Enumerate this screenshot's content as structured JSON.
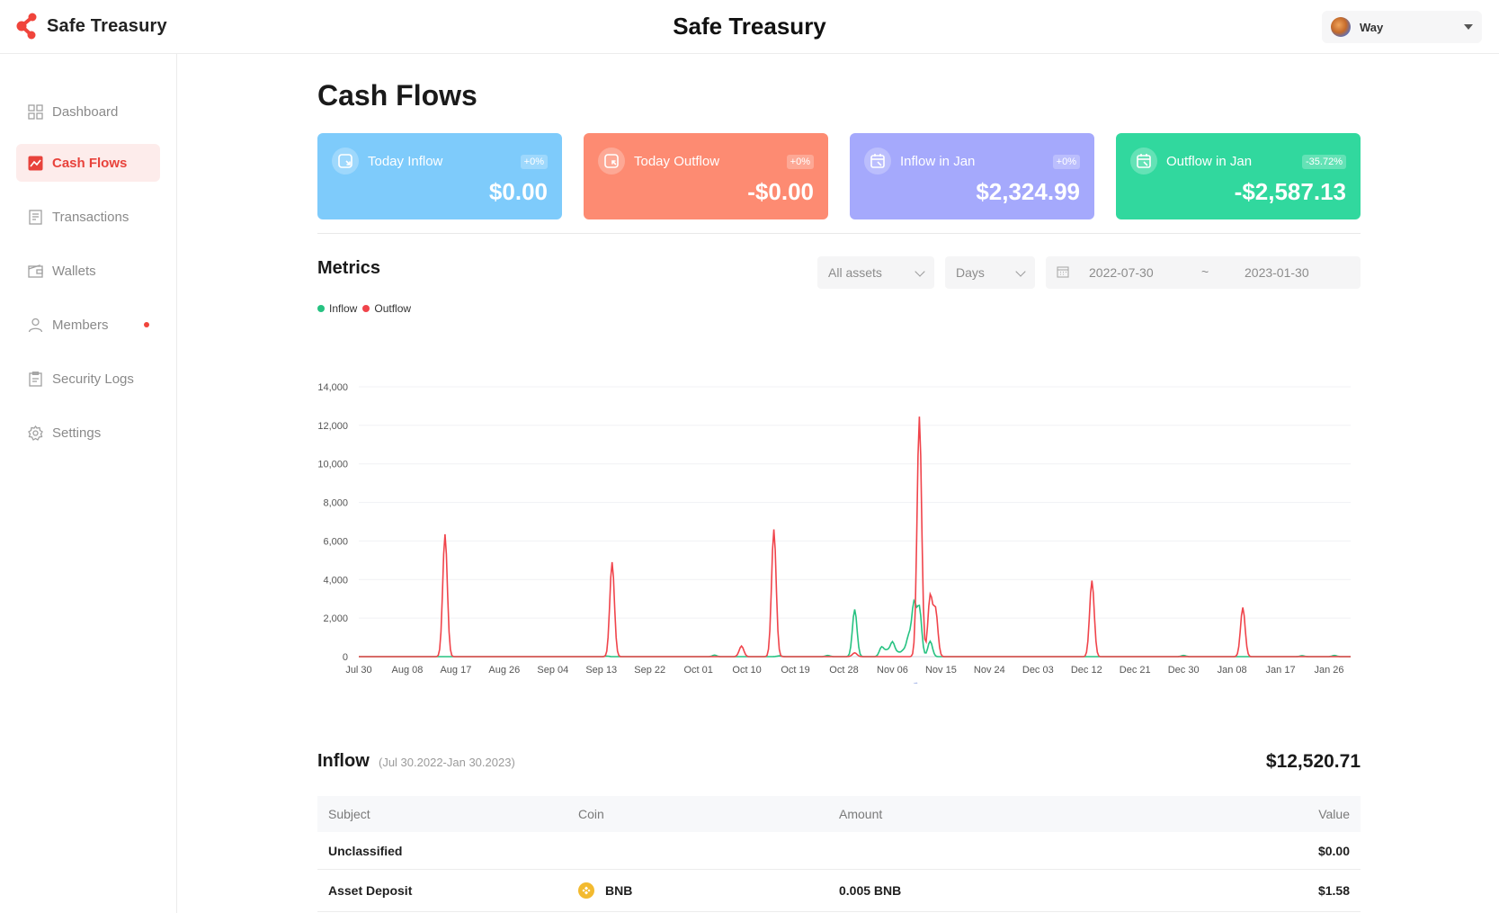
{
  "header": {
    "logo_text": "Safe Treasury",
    "title": "Safe Treasury",
    "user_name": "Way"
  },
  "sidebar": {
    "items": [
      {
        "label": "Dashboard",
        "icon": "dashboard-icon"
      },
      {
        "label": "Cash Flows",
        "icon": "chart-icon",
        "active": true
      },
      {
        "label": "Transactions",
        "icon": "document-icon"
      },
      {
        "label": "Wallets",
        "icon": "wallet-icon"
      },
      {
        "label": "Members",
        "icon": "user-icon",
        "notification": true
      },
      {
        "label": "Security Logs",
        "icon": "clipboard-icon"
      },
      {
        "label": "Settings",
        "icon": "gear-icon"
      }
    ]
  },
  "page": {
    "title": "Cash Flows"
  },
  "cards": [
    {
      "label": "Today Inflow",
      "badge": "+0%",
      "value": "$0.00",
      "color": "#7ecbfb"
    },
    {
      "label": "Today Outflow",
      "badge": "+0%",
      "value": "-$0.00",
      "color": "#fd8b72"
    },
    {
      "label": "Inflow in Jan",
      "badge": "+0%",
      "value": "$2,324.99",
      "color": "#a5a9fc"
    },
    {
      "label": "Outflow in Jan",
      "badge": "-35.72%",
      "value": "-$2,587.13",
      "color": "#31d89e"
    }
  ],
  "metrics": {
    "title": "Metrics",
    "asset_select": "All assets",
    "period_select": "Days",
    "date_start": "2022-07-30",
    "date_separator": "~",
    "date_end": "2023-01-30"
  },
  "colors": {
    "inflow": "#26c281",
    "outflow": "#f0444b",
    "accent": "#e8423b"
  },
  "chart_data": {
    "type": "line",
    "series": [
      {
        "name": "Inflow",
        "color": "#26c281",
        "peaks": [
          [
            92,
            2450
          ],
          [
            97,
            500
          ],
          [
            98,
            300
          ],
          [
            99,
            750
          ],
          [
            100,
            200
          ],
          [
            101,
            300
          ],
          [
            102,
            1000
          ],
          [
            103,
            2700
          ],
          [
            104,
            2500
          ],
          [
            106,
            800
          ],
          [
            46,
            30
          ],
          [
            66,
            80
          ],
          [
            78,
            40
          ],
          [
            87,
            60
          ],
          [
            153,
            60
          ],
          [
            175,
            50
          ],
          [
            181,
            60
          ]
        ]
      },
      {
        "name": "Outflow",
        "color": "#f0444b",
        "peaks": [
          [
            16,
            6350
          ],
          [
            47,
            4900
          ],
          [
            71,
            550
          ],
          [
            77,
            6600
          ],
          [
            104,
            12450
          ],
          [
            106,
            3100
          ],
          [
            107,
            2400
          ],
          [
            92,
            200
          ],
          [
            136,
            3950
          ],
          [
            164,
            2550
          ]
        ]
      }
    ],
    "x_ticks": [
      "Jul 30",
      "Aug 08",
      "Aug 17",
      "Aug 26",
      "Sep 04",
      "Sep 13",
      "Sep 22",
      "Oct 01",
      "Oct 10",
      "Oct 19",
      "Oct 28",
      "Nov 06",
      "Nov 15",
      "Nov 24",
      "Dec 03",
      "Dec 12",
      "Dec 21",
      "Dec 30",
      "Jan 08",
      "Jan 17",
      "Jan 26"
    ],
    "y_ticks": [
      "0",
      "2,000",
      "4,000",
      "6,000",
      "8,000",
      "10,000",
      "12,000",
      "14,000"
    ],
    "ylim": [
      0,
      14000
    ],
    "x_day_count": 185,
    "legend_placement": "top-left",
    "grid": true
  },
  "inflow": {
    "title": "Inflow",
    "range": "(Jul 30.2022-Jan 30.2023)",
    "total": "$12,520.71"
  },
  "table": {
    "headers": {
      "subject": "Subject",
      "coin": "Coin",
      "amount": "Amount",
      "value": "Value"
    },
    "rows": [
      {
        "subject": "Unclassified",
        "coin": "",
        "amount": "",
        "value": "$0.00"
      },
      {
        "subject": "Asset Deposit",
        "coin": "BNB",
        "coin_icon": "bnb-coin-icon",
        "amount": "0.005 BNB",
        "value": "$1.58"
      }
    ]
  }
}
